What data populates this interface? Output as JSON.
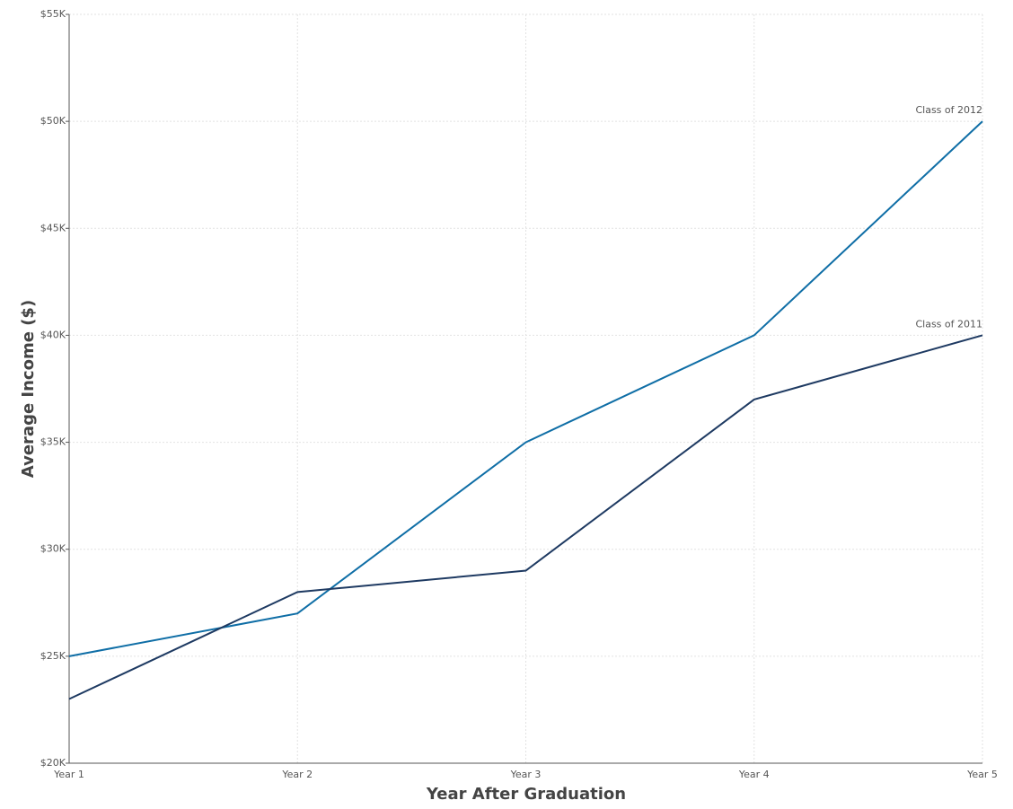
{
  "chart_data": {
    "type": "line",
    "x_label": "Year After Graduation",
    "y_label": "Average Income ($)",
    "categories": [
      "Year 1",
      "Year 2",
      "Year 3",
      "Year 4",
      "Year 5"
    ],
    "series": [
      {
        "name": "Class of 2012",
        "color": "#0f6ea6",
        "values": [
          25000,
          27000,
          35000,
          40000,
          50000
        ]
      },
      {
        "name": "Class of 2011",
        "color": "#1e3a62",
        "values": [
          23000,
          28000,
          29000,
          37000,
          40000
        ]
      }
    ],
    "ylim": [
      20000,
      55000
    ],
    "yticks": [
      {
        "value": 20000,
        "label": "$20K"
      },
      {
        "value": 25000,
        "label": "$25K"
      },
      {
        "value": 30000,
        "label": "$30K"
      },
      {
        "value": 35000,
        "label": "$35K"
      },
      {
        "value": 40000,
        "label": "$40K"
      },
      {
        "value": 45000,
        "label": "$45K"
      },
      {
        "value": 50000,
        "label": "$50K"
      },
      {
        "value": 55000,
        "label": "$55K"
      }
    ],
    "grid": true
  }
}
